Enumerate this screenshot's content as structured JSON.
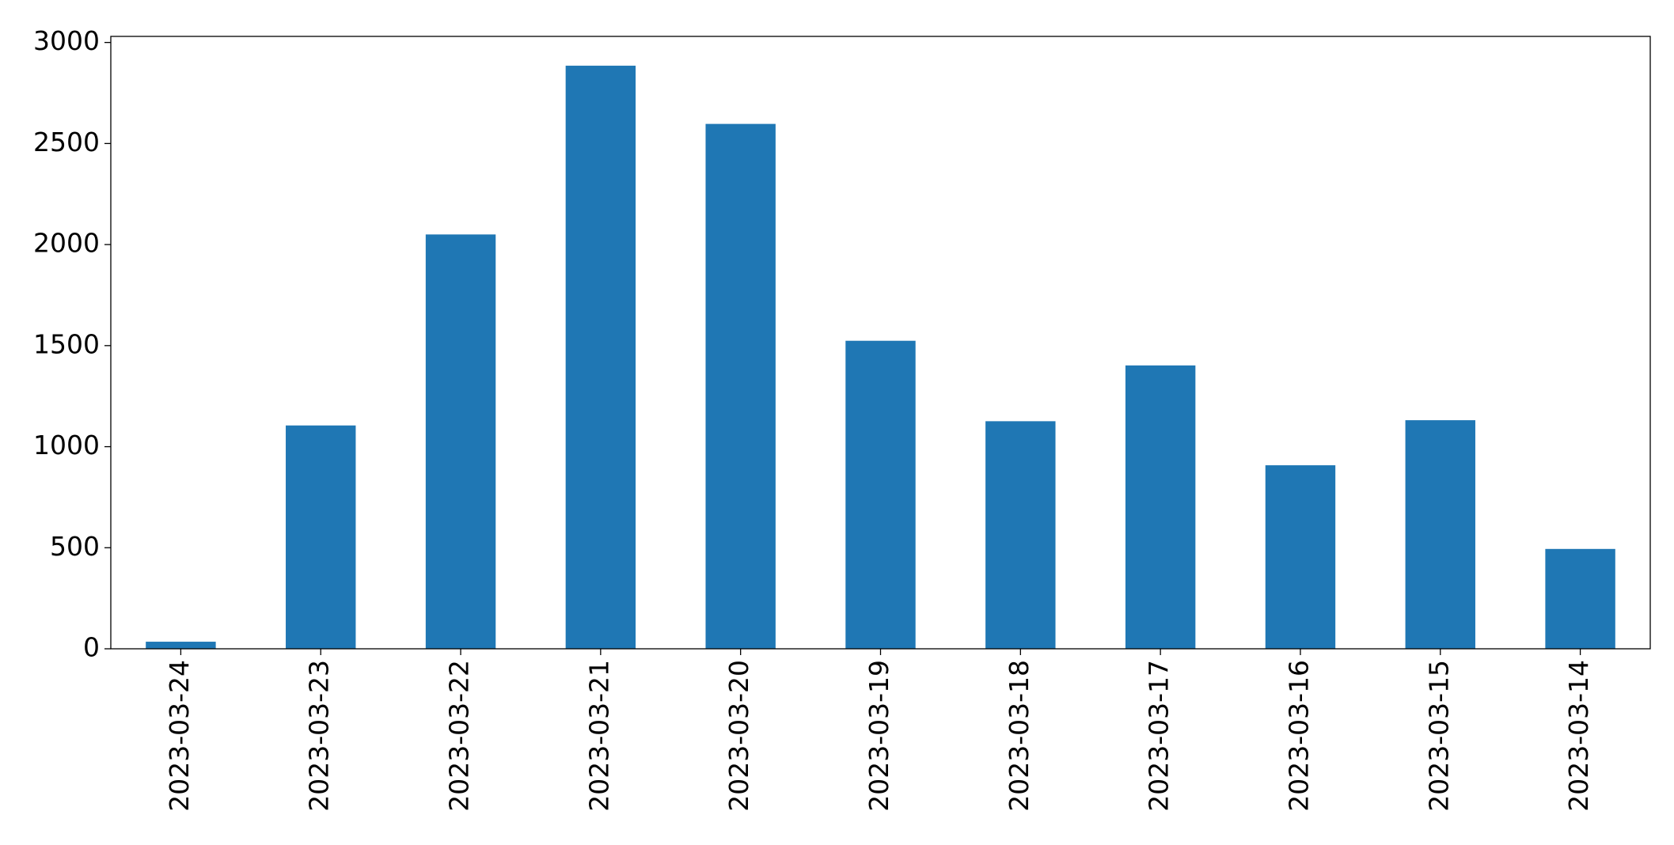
{
  "chart_data": {
    "type": "bar",
    "categories": [
      "2023-03-24",
      "2023-03-23",
      "2023-03-22",
      "2023-03-21",
      "2023-03-20",
      "2023-03-19",
      "2023-03-18",
      "2023-03-17",
      "2023-03-16",
      "2023-03-15",
      "2023-03-14"
    ],
    "values": [
      35,
      1105,
      2050,
      2885,
      2597,
      1524,
      1126,
      1402,
      908,
      1131,
      494
    ],
    "color": "#1f77b4",
    "ylim": [
      0,
      3030
    ],
    "yticks": [
      0,
      500,
      1000,
      1500,
      2000,
      2500,
      3000
    ]
  }
}
